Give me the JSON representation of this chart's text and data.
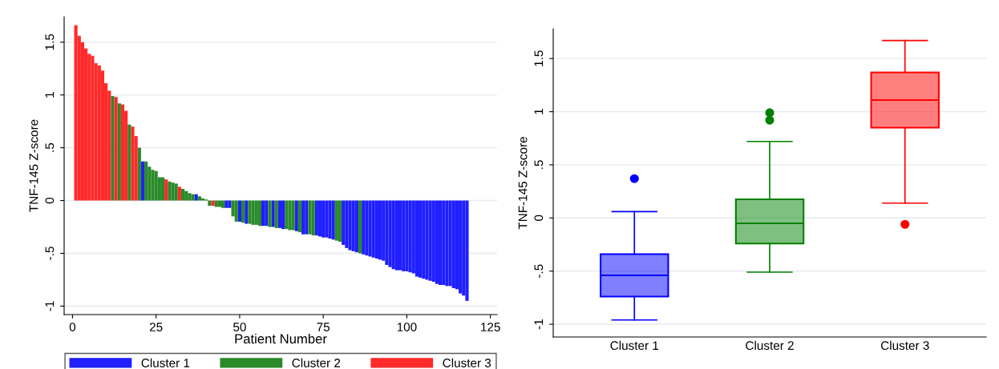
{
  "chart_data": [
    {
      "type": "bar",
      "xlabel": "Patient Number",
      "ylabel": "TNF-145 Z-score",
      "xlim": [
        -2.5,
        127
      ],
      "xticks": [
        0,
        25,
        50,
        75,
        100,
        125
      ],
      "ylim": [
        -1.08,
        1.74
      ],
      "yticks": [
        {
          "value": -1,
          "label": "-1"
        },
        {
          "value": -0.5,
          "label": "-.5"
        },
        0,
        {
          "value": 0.5,
          "label": ".5"
        },
        1,
        1.5
      ],
      "grid": "y",
      "legend": "bottom",
      "series": [
        {
          "name": "Cluster 1",
          "color": "#1f1fff",
          "x": [
            21,
            37,
            46,
            47,
            50,
            52,
            57,
            58,
            60,
            62,
            63,
            67,
            69,
            70,
            73,
            74,
            75,
            76,
            77,
            78,
            81,
            82,
            83,
            84,
            85,
            87,
            88,
            89,
            90,
            91,
            92,
            93,
            94,
            95,
            96,
            97,
            98,
            99,
            100,
            101,
            102,
            103,
            104,
            105,
            106,
            107,
            108,
            109,
            110,
            111,
            112,
            113,
            114,
            115,
            116,
            117,
            118
          ],
          "values": [
            0.37,
            0.06,
            -0.07,
            -0.07,
            -0.2,
            -0.22,
            -0.24,
            -0.24,
            -0.25,
            -0.26,
            -0.27,
            -0.29,
            -0.32,
            -0.32,
            -0.33,
            -0.34,
            -0.35,
            -0.35,
            -0.36,
            -0.37,
            -0.42,
            -0.45,
            -0.47,
            -0.48,
            -0.49,
            -0.51,
            -0.52,
            -0.53,
            -0.54,
            -0.55,
            -0.56,
            -0.57,
            -0.61,
            -0.63,
            -0.65,
            -0.66,
            -0.66,
            -0.67,
            -0.67,
            -0.68,
            -0.69,
            -0.72,
            -0.73,
            -0.74,
            -0.75,
            -0.76,
            -0.77,
            -0.79,
            -0.8,
            -0.8,
            -0.81,
            -0.81,
            -0.83,
            -0.84,
            -0.88,
            -0.9,
            -0.95
          ]
        },
        {
          "name": "Cluster 2",
          "color": "#2a8a2a",
          "x": [
            12,
            14,
            17,
            20,
            22,
            23,
            24,
            25,
            26,
            27,
            29,
            30,
            31,
            33,
            34,
            35,
            36,
            38,
            39,
            40,
            41,
            43,
            44,
            45,
            48,
            49,
            51,
            53,
            54,
            55,
            56,
            59,
            61,
            64,
            65,
            66,
            68,
            71,
            72,
            79,
            80,
            86
          ],
          "values": [
            0.99,
            0.92,
            0.72,
            0.5,
            0.37,
            0.32,
            0.29,
            0.28,
            0.22,
            0.22,
            0.18,
            0.17,
            0.16,
            0.11,
            0.09,
            0.07,
            0.06,
            0.04,
            0.02,
            0.01,
            -0.05,
            -0.06,
            -0.06,
            -0.07,
            -0.15,
            -0.2,
            -0.21,
            -0.22,
            -0.23,
            -0.23,
            -0.24,
            -0.25,
            -0.26,
            -0.27,
            -0.28,
            -0.28,
            -0.3,
            -0.32,
            -0.33,
            -0.38,
            -0.39,
            -0.5
          ]
        },
        {
          "name": "Cluster 3",
          "color": "#ff2a2a",
          "x": [
            1,
            2,
            3,
            4,
            5,
            6,
            7,
            8,
            9,
            10,
            11,
            13,
            15,
            16,
            18,
            19,
            28,
            32,
            42
          ],
          "values": [
            1.66,
            1.56,
            1.5,
            1.44,
            1.39,
            1.37,
            1.3,
            1.28,
            1.23,
            1.11,
            1.04,
            0.98,
            0.91,
            0.85,
            0.7,
            0.61,
            0.2,
            0.13,
            -0.05
          ]
        }
      ]
    },
    {
      "type": "box",
      "ylabel": "TNF-145 Z-score",
      "categories": [
        "Cluster 1",
        "Cluster 2",
        "Cluster 3"
      ],
      "colors": [
        "#0000ff",
        "#008000",
        "#ff0000"
      ],
      "ylim": [
        -1.12,
        1.78
      ],
      "yticks": [
        {
          "value": -1,
          "label": "-1"
        },
        {
          "value": -0.5,
          "label": "-.5"
        },
        0,
        {
          "value": 0.5,
          "label": ".5"
        },
        1,
        1.5
      ],
      "grid": "y",
      "boxes": [
        {
          "low": -0.96,
          "q1": -0.74,
          "median": -0.54,
          "q3": -0.34,
          "high": 0.06,
          "outliers": [
            0.37
          ]
        },
        {
          "low": -0.51,
          "q1": -0.24,
          "median": -0.05,
          "q3": 0.175,
          "high": 0.72,
          "outliers": [
            0.92,
            0.99
          ]
        },
        {
          "low": 0.14,
          "q1": 0.85,
          "median": 1.11,
          "q3": 1.37,
          "high": 1.67,
          "outliers": [
            -0.06
          ]
        }
      ]
    }
  ]
}
